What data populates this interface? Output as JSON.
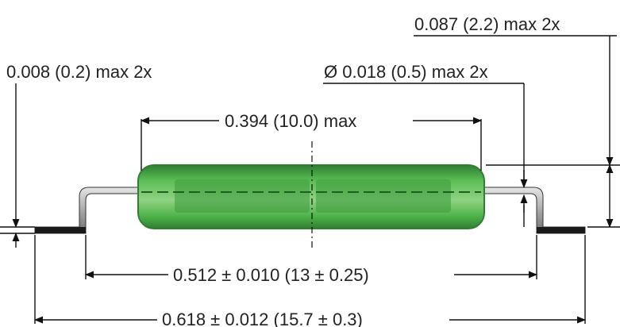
{
  "labels": {
    "lead_thickness": "0.008 (0.2) max 2x",
    "lead_diameter": "Ø 0.018 (0.5) max 2x",
    "lead_height": "0.087 (2.2) max 2x",
    "body_length": "0.394 (10.0) max",
    "lead_span": "0.512 ± 0.010 (13 ± 0.25)",
    "overall_length": "0.618 ± 0.012 (15.7 ± 0.3)"
  },
  "colors": {
    "body_fill": "#4fb44a",
    "body_dark": "#2f7f31",
    "body_light": "#8fd283",
    "lead": "#8a8a8a",
    "lead_foot": "#1a1a1a",
    "text": "#222222",
    "line": "#111111"
  }
}
